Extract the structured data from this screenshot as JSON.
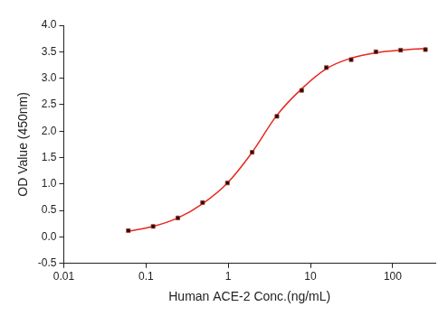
{
  "chart_data": {
    "type": "scatter",
    "x_label": "Human ACE-2 Conc.(ng/mL)",
    "y_label": "OD Value (450nm)",
    "log": "x",
    "grid": false,
    "xlim": [
      0.01,
      330
    ],
    "xticks": [
      0.01,
      0.1,
      1,
      10,
      100
    ],
    "ylim": [
      -0.5,
      4.0
    ],
    "yticks": [
      -0.5,
      {
        "value": 0,
        "label": "0.0"
      },
      0.5,
      {
        "value": 1,
        "label": "1.0"
      },
      1.5,
      {
        "value": 2,
        "label": "2.0"
      },
      2.5,
      {
        "value": 3,
        "label": "3.0"
      },
      3.5,
      {
        "value": 4,
        "label": "4.0"
      }
    ],
    "series": [
      {
        "type": "scatter",
        "marker": "square",
        "color": "#111111",
        "x": [
          0.061,
          0.122,
          0.244,
          0.488,
          0.977,
          1.953,
          3.906,
          7.813,
          15.625,
          31.25,
          62.5,
          125,
          250
        ],
        "values": [
          0.12,
          0.2,
          0.36,
          0.65,
          1.02,
          1.6,
          2.28,
          2.77,
          3.2,
          3.35,
          3.5,
          3.53,
          3.54
        ]
      },
      {
        "type": "line",
        "line_style": "solid",
        "color": "#e8261e",
        "x": [
          0.061,
          0.122,
          0.244,
          0.488,
          0.977,
          1.953,
          3.906,
          7.813,
          15.625,
          31.25,
          62.5,
          125,
          250
        ],
        "values": [
          0.11,
          0.2,
          0.36,
          0.63,
          1.02,
          1.6,
          2.3,
          2.8,
          3.18,
          3.38,
          3.48,
          3.53,
          3.56
        ]
      }
    ]
  }
}
